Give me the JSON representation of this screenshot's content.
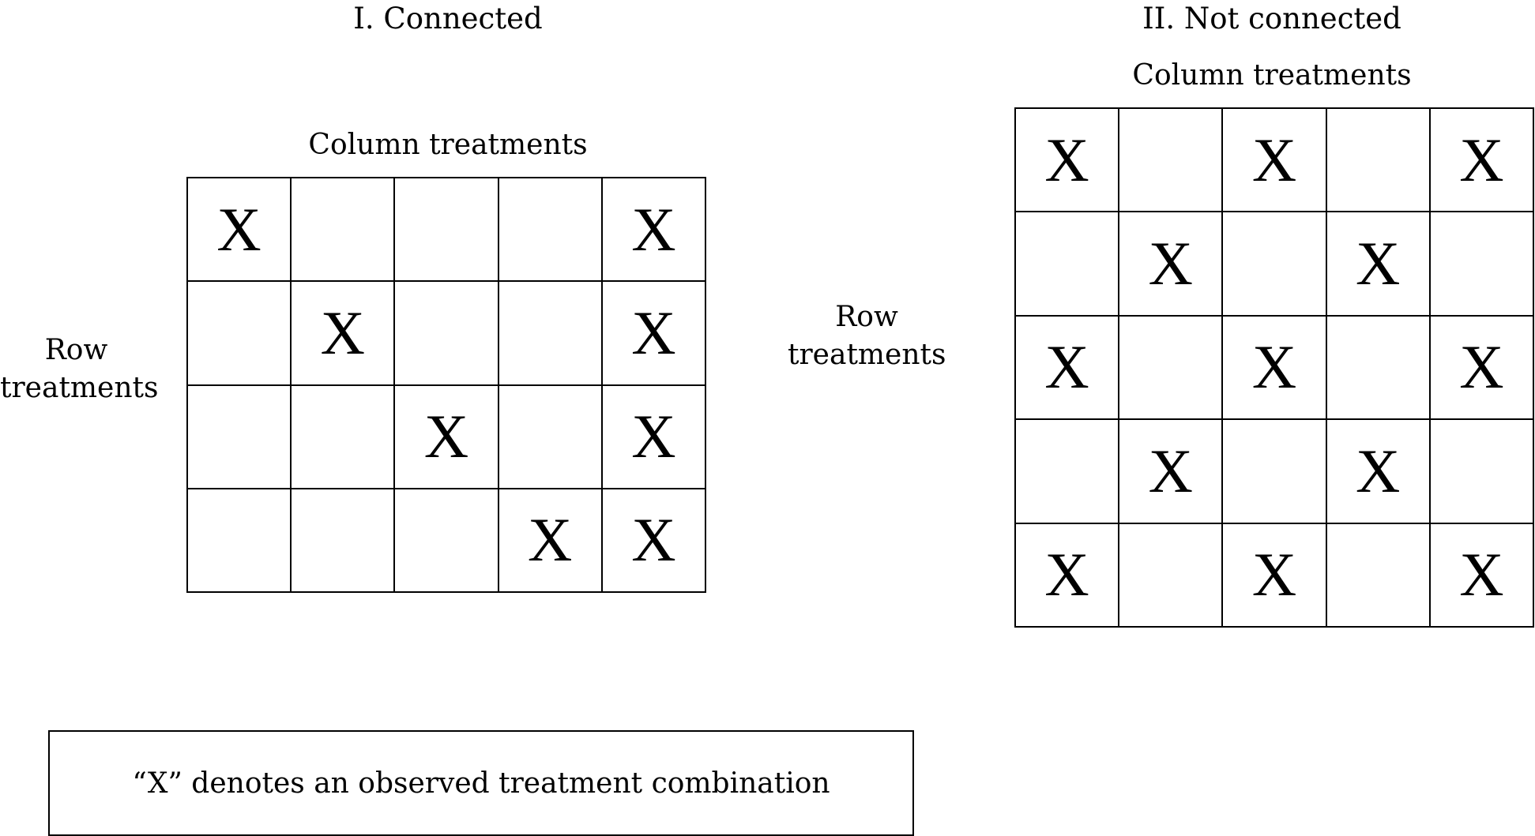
{
  "panel_connected": {
    "title": "I. Connected",
    "column_label": "Column treatments",
    "row_label_line1": "Row",
    "row_label_line2": "treatments",
    "rows": 4,
    "cols": 5,
    "cells": [
      [
        "X",
        "",
        "",
        "",
        "X"
      ],
      [
        "",
        "X",
        "",
        "",
        "X"
      ],
      [
        "",
        "",
        "X",
        "",
        "X"
      ],
      [
        "",
        "",
        "",
        "X",
        "X"
      ]
    ]
  },
  "panel_not_connected": {
    "title": "II. Not connected",
    "column_label": "Column treatments",
    "row_label_line1": "Row",
    "row_label_line2": "treatments",
    "rows": 5,
    "cols": 5,
    "cells": [
      [
        "X",
        "",
        "X",
        "",
        "X"
      ],
      [
        "",
        "X",
        "",
        "X",
        ""
      ],
      [
        "X",
        "",
        "X",
        "",
        "X"
      ],
      [
        "",
        "X",
        "",
        "X",
        ""
      ],
      [
        "X",
        "",
        "X",
        "",
        "X"
      ]
    ]
  },
  "legend": {
    "text": "“X” denotes an observed treatment combination"
  }
}
